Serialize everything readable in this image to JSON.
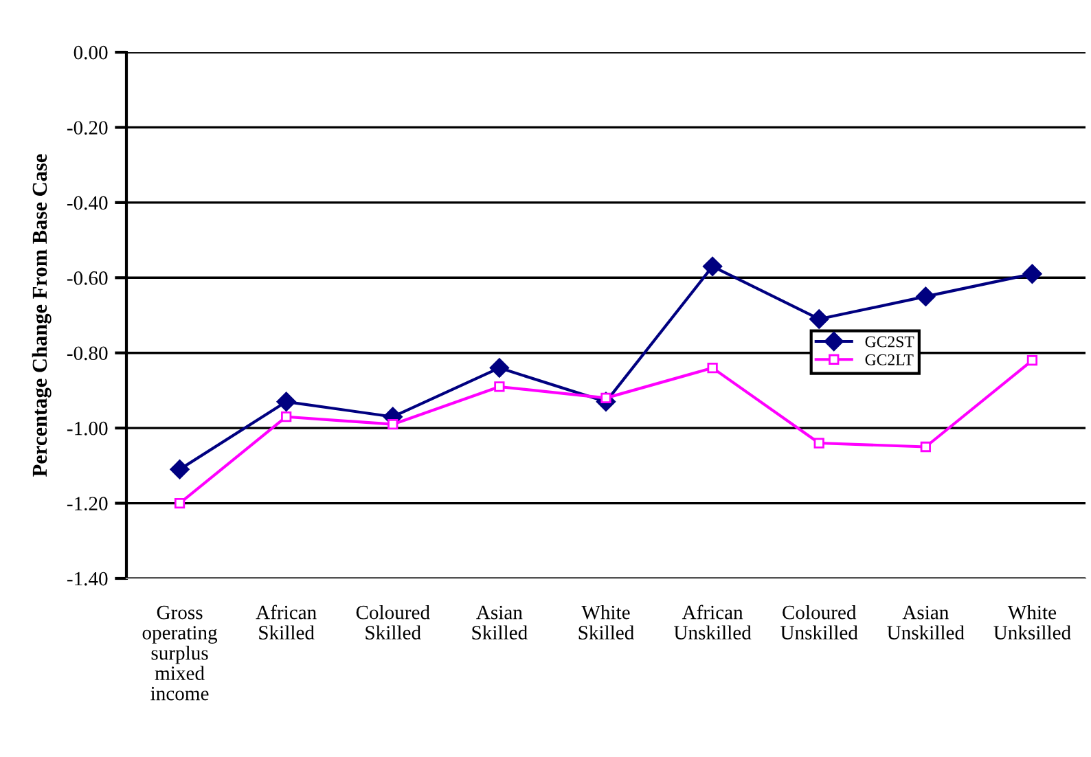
{
  "chart_data": {
    "type": "line",
    "ylabel": "Percentage Change From Base Case",
    "categories": [
      "Gross\noperating\nsurplus\nmixed\nincome",
      "African\nSkilled",
      "Coloured\nSkilled",
      "Asian\nSkilled",
      "White\nSkilled",
      "African\nUnskilled",
      "Coloured\nUnskilled",
      "Asian\nUnskilled",
      "White\nUnksilled"
    ],
    "series": [
      {
        "name": "GC2ST",
        "color": "#000080",
        "marker": "diamond",
        "values": [
          -1.11,
          -0.93,
          -0.97,
          -0.84,
          -0.93,
          -0.57,
          -0.71,
          -0.65,
          -0.59
        ]
      },
      {
        "name": "GC2LT",
        "color": "#ff00ff",
        "marker": "square",
        "values": [
          -1.2,
          -0.97,
          -0.99,
          -0.89,
          -0.92,
          -0.84,
          -1.04,
          -1.05,
          -0.82
        ]
      }
    ],
    "ylim": [
      -1.4,
      0.0
    ],
    "yticks": [
      {
        "value": 0.0,
        "label": "0.00"
      },
      {
        "value": -0.2,
        "label": "-0.20"
      },
      {
        "value": -0.4,
        "label": "-0.40"
      },
      {
        "value": -0.6,
        "label": "-0.60"
      },
      {
        "value": -0.8,
        "label": "-0.80"
      },
      {
        "value": -1.0,
        "label": "-1.00"
      },
      {
        "value": -1.2,
        "label": "-1.20"
      },
      {
        "value": -1.4,
        "label": "-1.40"
      }
    ],
    "grid": "y",
    "legend": "center right",
    "line_style": "solid"
  }
}
